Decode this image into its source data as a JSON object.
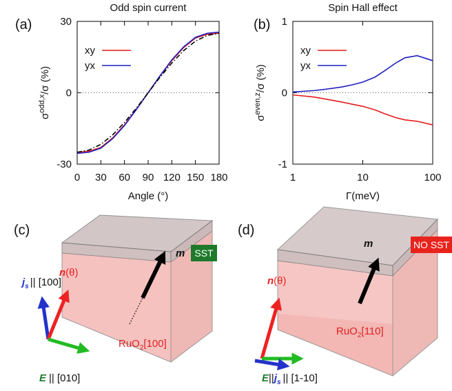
{
  "chart_data": [
    {
      "type": "line",
      "panel": "(a)",
      "title": "Odd spin current",
      "xlabel": "Angle (°)",
      "ylabel": {
        "base": "σ",
        "sup": "odd,x",
        "rest": "/σ (%)"
      },
      "x": [
        0,
        15,
        30,
        45,
        60,
        75,
        90,
        105,
        120,
        135,
        150,
        165,
        180
      ],
      "series": [
        {
          "name": "xy",
          "color": "#e41a1c",
          "values": [
            -25,
            -24.6,
            -23,
            -19,
            -13.5,
            -7,
            0,
            7,
            13.5,
            19,
            23,
            24.6,
            25
          ]
        },
        {
          "name": "yx",
          "color": "#1f1fbf",
          "values": [
            -25.5,
            -25,
            -23.3,
            -19.3,
            -13.8,
            -7.1,
            0,
            7.1,
            13.8,
            19.3,
            23.3,
            25,
            25.5
          ]
        },
        {
          "color": "#000000",
          "dash": "dashdot",
          "values": [
            -25,
            -24.1,
            -21.7,
            -17.7,
            -12.5,
            -6.5,
            0,
            6.5,
            12.5,
            17.7,
            21.7,
            24.1,
            25
          ]
        }
      ],
      "xlim": [
        0,
        180
      ],
      "xticks": [
        0,
        30,
        60,
        90,
        120,
        150,
        180
      ],
      "ylim": [
        -30,
        30
      ],
      "yticks": [
        -30,
        0,
        30
      ],
      "zero_line": true,
      "legend": "upper left"
    },
    {
      "type": "line",
      "panel": "(b)",
      "title": "Spin Hall effect",
      "xlabel": "Γ(meV)",
      "ylabel": {
        "base": "σ",
        "sup": "even,z",
        "rest": "/σ (%)"
      },
      "x": [
        1,
        2,
        3,
        5,
        7,
        10,
        15,
        20,
        30,
        40,
        60,
        100
      ],
      "series": [
        {
          "name": "xy",
          "color": "#e41a1c",
          "values": [
            -0.03,
            -0.06,
            -0.09,
            -0.13,
            -0.16,
            -0.19,
            -0.24,
            -0.29,
            -0.35,
            -0.38,
            -0.4,
            -0.45
          ]
        },
        {
          "name": "yx",
          "color": "#1f1fbf",
          "values": [
            0.01,
            0.03,
            0.05,
            0.08,
            0.11,
            0.15,
            0.22,
            0.3,
            0.42,
            0.49,
            0.52,
            0.45
          ]
        }
      ],
      "xlim": [
        1,
        100
      ],
      "xticks": [
        1,
        10,
        100
      ],
      "xlog": true,
      "ylim": [
        -1,
        1
      ],
      "yticks": [
        -1,
        0,
        1
      ],
      "zero_line": true,
      "legend": "upper left"
    }
  ],
  "diagrams": [
    {
      "panel": "(c)",
      "m": "m",
      "badge": "SST",
      "n": "n",
      "n_arg": "(θ)",
      "j": "j",
      "j_sub": "s",
      "j_rest": "|| [100]",
      "E": "E",
      "E_rest": "|| [010]",
      "material": "RuO",
      "material_sub": "2",
      "material_rest": "[100]"
    },
    {
      "panel": "(d)",
      "m": "m",
      "badge": "NO SST",
      "n": "n",
      "n_arg": "(θ)",
      "E": "E",
      "sep": "||",
      "j": "j",
      "j_sub": "s",
      "j_rest": "|| [1-10]",
      "material": "RuO",
      "material_sub": "2",
      "material_rest": "[110]"
    }
  ]
}
